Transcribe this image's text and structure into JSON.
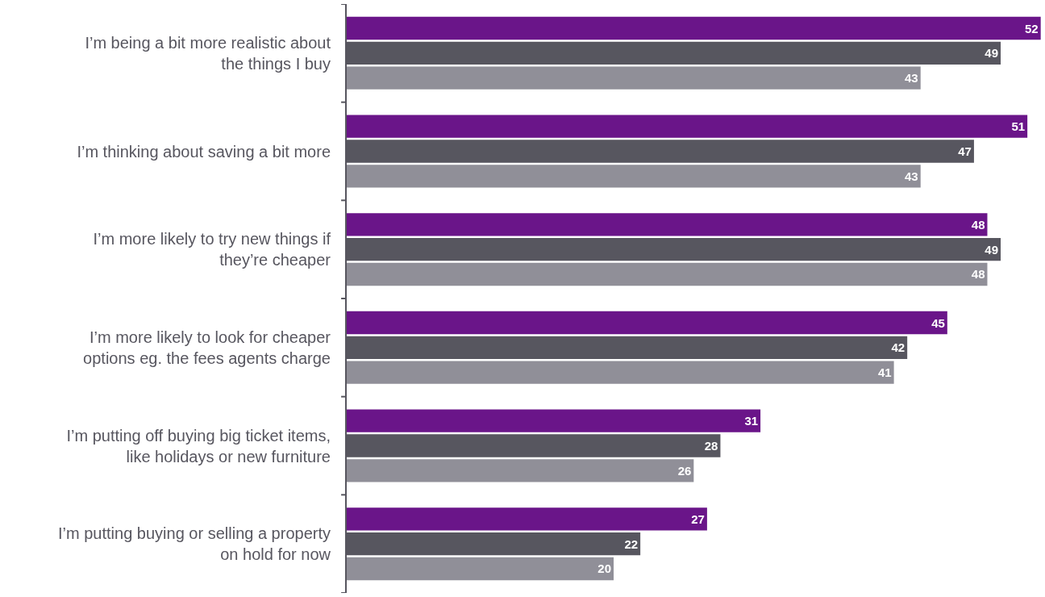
{
  "chart_data": {
    "type": "bar",
    "orientation": "horizontal",
    "categories": [
      "I’m being a bit more realistic about\nthe things I buy",
      "I’m thinking about saving a bit more",
      "I’m more likely to try new things if\nthey’re cheaper",
      "I’m more likely to look for cheaper\noptions eg. the fees agents charge",
      "I’m putting off buying big ticket items,\nlike holidays or new furniture",
      "I’m putting buying or selling a property\non hold for now"
    ],
    "series": [
      {
        "color": "#6a1589",
        "values": [
          52,
          51,
          48,
          45,
          31,
          27
        ]
      },
      {
        "color": "#57565f",
        "values": [
          49,
          47,
          49,
          42,
          28,
          22
        ]
      },
      {
        "color": "#908f98",
        "values": [
          43,
          43,
          48,
          41,
          26,
          20
        ]
      }
    ],
    "xlim": [
      0,
      52.2
    ],
    "data_labels": true,
    "tick_labels": "y"
  }
}
